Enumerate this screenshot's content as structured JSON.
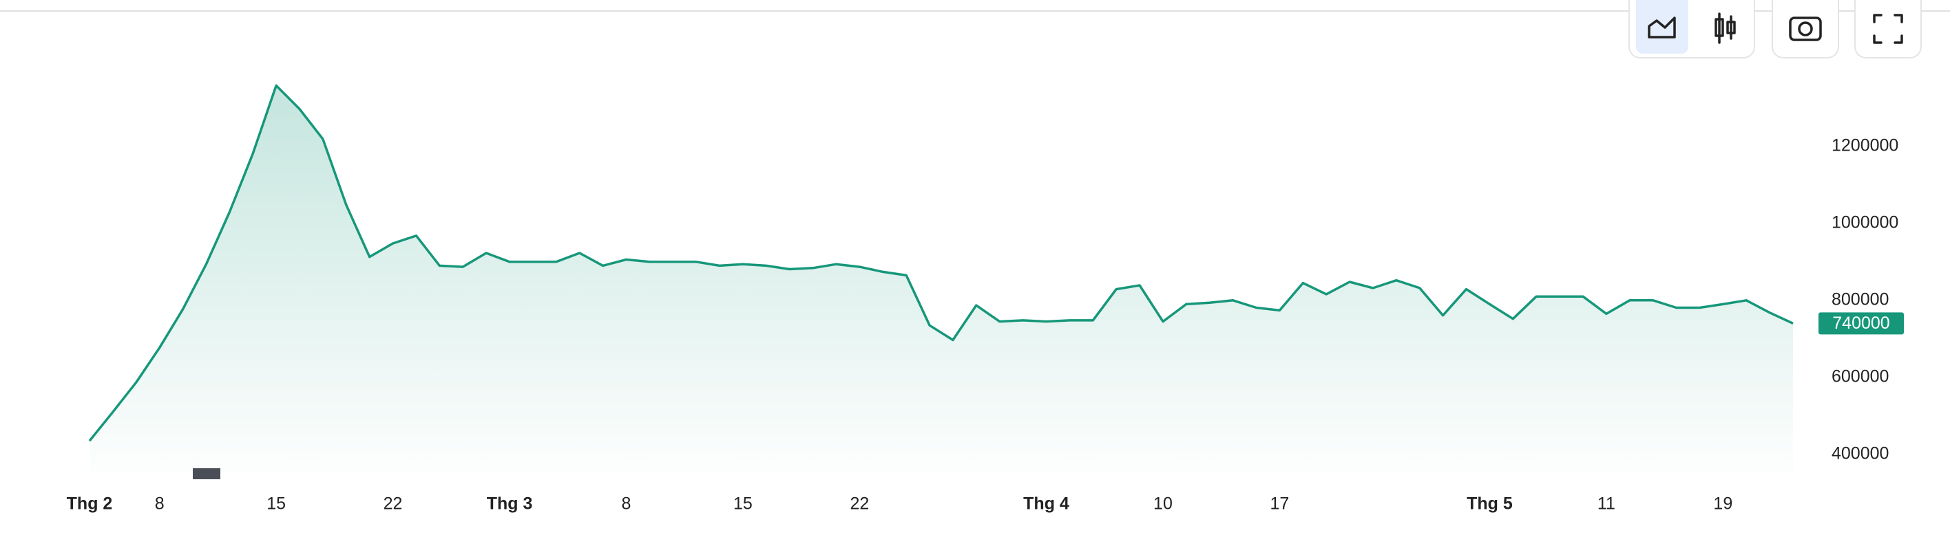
{
  "chart_data": {
    "type": "area",
    "categories": [
      "Thg 2",
      null,
      null,
      "8",
      null,
      null,
      null,
      null,
      "15",
      null,
      null,
      null,
      null,
      "22",
      null,
      null,
      null,
      null,
      "Thg 3",
      null,
      null,
      null,
      null,
      "8",
      null,
      null,
      null,
      null,
      "15",
      null,
      null,
      null,
      null,
      "22",
      null,
      null,
      null,
      null,
      null,
      null,
      null,
      "Thg 4",
      null,
      null,
      null,
      null,
      "10",
      null,
      null,
      null,
      null,
      "17",
      null,
      null,
      null,
      null,
      null,
      null,
      null,
      null,
      "Thg 5",
      null,
      null,
      null,
      null,
      "11",
      null,
      null,
      null,
      null,
      "19",
      null,
      null,
      null
    ],
    "values": [
      435000,
      510000,
      587000,
      677000,
      777000,
      894000,
      1029000,
      1181000,
      1358000,
      1297000,
      1219000,
      1048000,
      913000,
      948000,
      968000,
      890000,
      887000,
      923000,
      900000,
      900000,
      900000,
      923000,
      890000,
      906000,
      900000,
      900000,
      900000,
      890000,
      894000,
      890000,
      881000,
      884000,
      894000,
      887000,
      874000,
      865000,
      735000,
      697000,
      787000,
      745000,
      748000,
      745000,
      748000,
      748000,
      829000,
      839000,
      745000,
      790000,
      794000,
      800000,
      781000,
      774000,
      845000,
      816000,
      848000,
      832000,
      852000,
      832000,
      761000,
      829000,
      790000,
      752000,
      810000,
      810000,
      810000,
      765000,
      800000,
      800000,
      781000,
      781000,
      790000,
      800000,
      768000,
      740000
    ],
    "color": "#16977a",
    "ylim": [
      355000,
      1548000
    ],
    "yticks": [
      400000,
      600000,
      800000,
      1000000,
      1200000
    ]
  }
}
